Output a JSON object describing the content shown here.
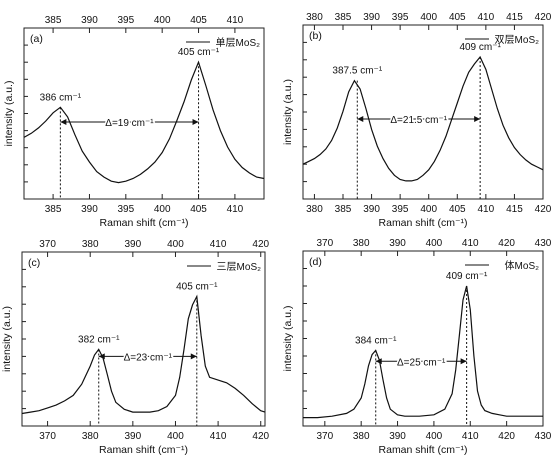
{
  "figure": {
    "x_label": "Raman shift (cm⁻¹)",
    "y_label": "intensity (a.u.)"
  },
  "chart_data": [
    {
      "type": "line",
      "panel_label": "(a)",
      "legend": "单层MoS₂",
      "xlim": [
        381,
        414
      ],
      "x_ticks_bottom": [
        385,
        390,
        395,
        400,
        405,
        410
      ],
      "x_ticks_top": [
        385,
        390,
        395,
        400,
        405,
        410
      ],
      "series": [
        {
          "x": [
            381,
            382,
            383,
            384,
            385,
            386,
            387,
            388,
            389,
            390,
            391,
            392,
            393,
            394,
            395,
            396,
            397,
            398,
            399,
            400,
            401,
            402,
            403,
            404,
            405,
            406,
            407,
            408,
            409,
            410,
            411,
            412,
            413,
            414
          ],
          "y": [
            0.4,
            0.43,
            0.47,
            0.52,
            0.58,
            0.62,
            0.55,
            0.42,
            0.3,
            0.22,
            0.15,
            0.11,
            0.08,
            0.07,
            0.08,
            0.1,
            0.13,
            0.17,
            0.22,
            0.29,
            0.39,
            0.52,
            0.66,
            0.82,
            0.95,
            0.78,
            0.6,
            0.45,
            0.33,
            0.24,
            0.18,
            0.14,
            0.11,
            0.1
          ]
        }
      ],
      "peaks": [
        {
          "x": 386,
          "label": "386 cm⁻¹"
        },
        {
          "x": 405,
          "label": "405 cm⁻¹"
        }
      ],
      "delta_label": "Δ=19 cm⁻¹"
    },
    {
      "type": "line",
      "panel_label": "(b)",
      "legend": "双层MoS₂",
      "xlim": [
        378,
        420
      ],
      "x_ticks_bottom": [
        380,
        385,
        390,
        395,
        400,
        405,
        410,
        415,
        420
      ],
      "x_ticks_top": [
        380,
        385,
        390,
        395,
        400,
        405,
        410,
        415,
        420
      ],
      "series": [
        {
          "x": [
            378,
            379,
            380,
            381,
            382,
            383,
            384,
            385,
            386,
            387,
            388,
            389,
            390,
            391,
            392,
            393,
            394,
            395,
            396,
            397,
            398,
            399,
            400,
            401,
            402,
            403,
            404,
            405,
            406,
            407,
            408,
            409,
            410,
            411,
            412,
            413,
            414,
            415,
            416,
            417,
            418,
            419,
            420
          ],
          "y": [
            0.2,
            0.22,
            0.24,
            0.27,
            0.31,
            0.37,
            0.46,
            0.58,
            0.72,
            0.8,
            0.74,
            0.6,
            0.45,
            0.33,
            0.24,
            0.17,
            0.12,
            0.09,
            0.08,
            0.08,
            0.09,
            0.12,
            0.16,
            0.22,
            0.3,
            0.4,
            0.52,
            0.64,
            0.76,
            0.86,
            0.92,
            0.97,
            0.88,
            0.74,
            0.6,
            0.48,
            0.39,
            0.32,
            0.27,
            0.23,
            0.2,
            0.18,
            0.16
          ]
        }
      ],
      "peaks": [
        {
          "x": 387.5,
          "label": "387.5 cm⁻¹"
        },
        {
          "x": 409,
          "label": "409 cm⁻¹"
        }
      ],
      "delta_label": "Δ=21.5 cm⁻¹"
    },
    {
      "type": "line",
      "panel_label": "(c)",
      "legend": "三层MoS₂",
      "xlim": [
        364,
        421
      ],
      "x_ticks_bottom": [
        370,
        380,
        390,
        400,
        410,
        420
      ],
      "x_ticks_top": [
        370,
        380,
        390,
        400,
        410,
        420
      ],
      "series": [
        {
          "x": [
            364,
            366,
            368,
            370,
            372,
            374,
            376,
            378,
            380,
            381,
            382,
            383,
            384,
            385,
            386,
            388,
            390,
            392,
            394,
            396,
            398,
            400,
            401,
            402,
            403,
            404,
            405,
            406,
            407,
            408,
            410,
            412,
            414,
            416,
            418,
            420,
            421
          ],
          "y": [
            0.04,
            0.05,
            0.06,
            0.08,
            0.1,
            0.13,
            0.17,
            0.25,
            0.38,
            0.46,
            0.5,
            0.44,
            0.32,
            0.2,
            0.12,
            0.07,
            0.05,
            0.05,
            0.05,
            0.06,
            0.09,
            0.17,
            0.3,
            0.5,
            0.72,
            0.82,
            0.88,
            0.6,
            0.38,
            0.3,
            0.28,
            0.26,
            0.22,
            0.17,
            0.11,
            0.06,
            0.05
          ]
        }
      ],
      "peaks": [
        {
          "x": 382,
          "label": "382 cm⁻¹"
        },
        {
          "x": 405,
          "label": "405 cm⁻¹"
        }
      ],
      "delta_label": "Δ=23 cm⁻¹"
    },
    {
      "type": "line",
      "panel_label": "(d)",
      "legend": "体MoS₂",
      "xlim": [
        364,
        430
      ],
      "x_ticks_bottom": [
        370,
        380,
        390,
        400,
        410,
        420,
        430
      ],
      "x_ticks_top": [
        370,
        380,
        390,
        400,
        410,
        420,
        430
      ],
      "series": [
        {
          "x": [
            364,
            368,
            372,
            376,
            378,
            380,
            381,
            382,
            383,
            384,
            385,
            386,
            387,
            388,
            390,
            392,
            396,
            400,
            403,
            405,
            406,
            407,
            408,
            409,
            410,
            411,
            412,
            413,
            414,
            416,
            418,
            420,
            424,
            428,
            430
          ],
          "y": [
            0.01,
            0.01,
            0.02,
            0.04,
            0.07,
            0.15,
            0.25,
            0.38,
            0.46,
            0.49,
            0.42,
            0.28,
            0.15,
            0.07,
            0.03,
            0.02,
            0.02,
            0.03,
            0.07,
            0.18,
            0.35,
            0.6,
            0.85,
            0.95,
            0.78,
            0.45,
            0.2,
            0.1,
            0.06,
            0.04,
            0.03,
            0.02,
            0.02,
            0.02,
            0.02
          ]
        }
      ],
      "peaks": [
        {
          "x": 384,
          "label": "384 cm⁻¹"
        },
        {
          "x": 409,
          "label": "409 cm⁻¹"
        }
      ],
      "delta_label": "Δ=25 cm⁻¹"
    }
  ]
}
